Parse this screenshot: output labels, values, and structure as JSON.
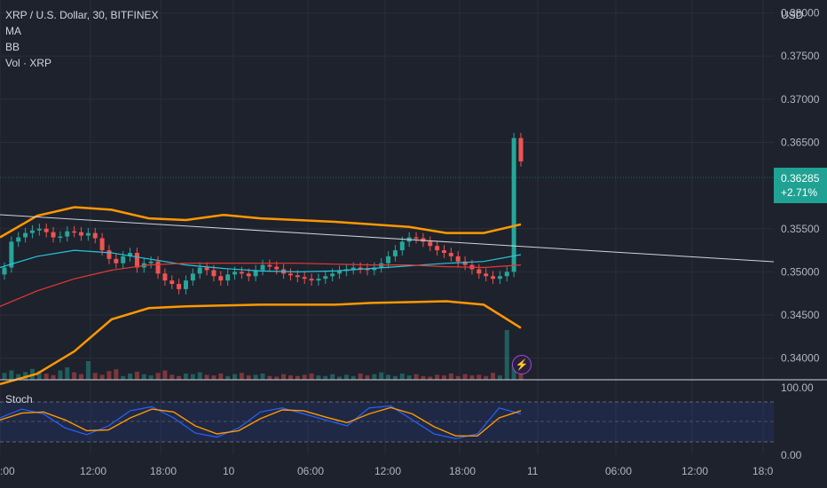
{
  "legend": {
    "symbol": "XRP / U.S. Dollar, 30, BITFINEX",
    "ma": "MA",
    "bb": "BB",
    "vol": "Vol · XRP"
  },
  "currency": "USD",
  "last_price": "0.36285",
  "change": "+2.71%",
  "stoch_label": "Stoch",
  "colors": {
    "bg": "#1e222d",
    "up": "#26a69a",
    "down": "#ef5350",
    "bb": "#ff9800",
    "ma_blue": "#26c6da",
    "ma_red": "#e53935",
    "stoch_k": "#2962ff",
    "stoch_d": "#ff9800"
  },
  "chart_data": {
    "type": "line",
    "price_ticks": [
      "0.38000",
      "0.37500",
      "0.37000",
      "0.36500",
      "0.35500",
      "0.35000",
      "0.34500",
      "0.34000"
    ],
    "stoch_ticks": [
      "100.00",
      "0.00"
    ],
    "x_ticks": [
      ":00",
      "12:00",
      "18:00",
      "10",
      "06:00",
      "12:00",
      "18:00",
      "11",
      "06:00",
      "12:00",
      "18:0"
    ],
    "ylim": [
      0.3375,
      0.3815
    ],
    "series": [
      {
        "values": [
          0.3505,
          0.3535,
          0.354,
          0.3545,
          0.3548,
          0.355,
          0.3546,
          0.354,
          0.3541,
          0.3547,
          0.3546,
          0.3542,
          0.3545,
          0.3539,
          0.3525,
          0.3515,
          0.351,
          0.3518,
          0.3522,
          0.3505,
          0.351,
          0.3512,
          0.3498,
          0.349,
          0.3486,
          0.348,
          0.349,
          0.3498,
          0.3505,
          0.3502,
          0.3495,
          0.349,
          0.3497,
          0.35,
          0.3498,
          0.3495,
          0.3502,
          0.3508,
          0.3506,
          0.3503,
          0.3498,
          0.3496,
          0.3494,
          0.3492,
          0.349,
          0.3492,
          0.3495,
          0.3498,
          0.3501,
          0.3503,
          0.3505,
          0.3504,
          0.3502,
          0.3505,
          0.351,
          0.3518,
          0.3525,
          0.3535,
          0.354,
          0.3539,
          0.3535,
          0.353,
          0.3525,
          0.3522,
          0.3518,
          0.3512,
          0.3508,
          0.3503,
          0.3498,
          0.3495,
          0.3492,
          0.3495,
          0.35,
          0.3655,
          0.3628
        ]
      }
    ],
    "bb_upper": [
      0.354,
      0.3565,
      0.3575,
      0.3572,
      0.3562,
      0.356,
      0.3566,
      0.3562,
      0.356,
      0.3558,
      0.3555,
      0.3552,
      0.3545,
      0.3545,
      0.3555
    ],
    "bb_lower": [
      0.337,
      0.3382,
      0.3408,
      0.3445,
      0.3458,
      0.346,
      0.3461,
      0.3462,
      0.3462,
      0.3462,
      0.3464,
      0.3465,
      0.3466,
      0.3462,
      0.3435
    ],
    "ma_blue": [
      0.3505,
      0.3518,
      0.3525,
      0.3522,
      0.3515,
      0.3508,
      0.3504,
      0.3501,
      0.35,
      0.3501,
      0.3504,
      0.3507,
      0.351,
      0.3512,
      0.352
    ],
    "ma_red": [
      0.346,
      0.3478,
      0.3492,
      0.3502,
      0.3508,
      0.351,
      0.351,
      0.351,
      0.351,
      0.3509,
      0.3508,
      0.3508,
      0.3506,
      0.3505,
      0.3508
    ],
    "stoch_k": [
      60,
      82,
      70,
      35,
      18,
      40,
      78,
      88,
      60,
      22,
      12,
      35,
      75,
      85,
      70,
      55,
      40,
      85,
      90,
      55,
      20,
      8,
      20,
      85,
      70
    ],
    "stoch_d": [
      55,
      72,
      75,
      55,
      28,
      30,
      60,
      82,
      75,
      40,
      20,
      28,
      58,
      80,
      78,
      62,
      48,
      70,
      86,
      70,
      38,
      15,
      15,
      60,
      78
    ]
  }
}
